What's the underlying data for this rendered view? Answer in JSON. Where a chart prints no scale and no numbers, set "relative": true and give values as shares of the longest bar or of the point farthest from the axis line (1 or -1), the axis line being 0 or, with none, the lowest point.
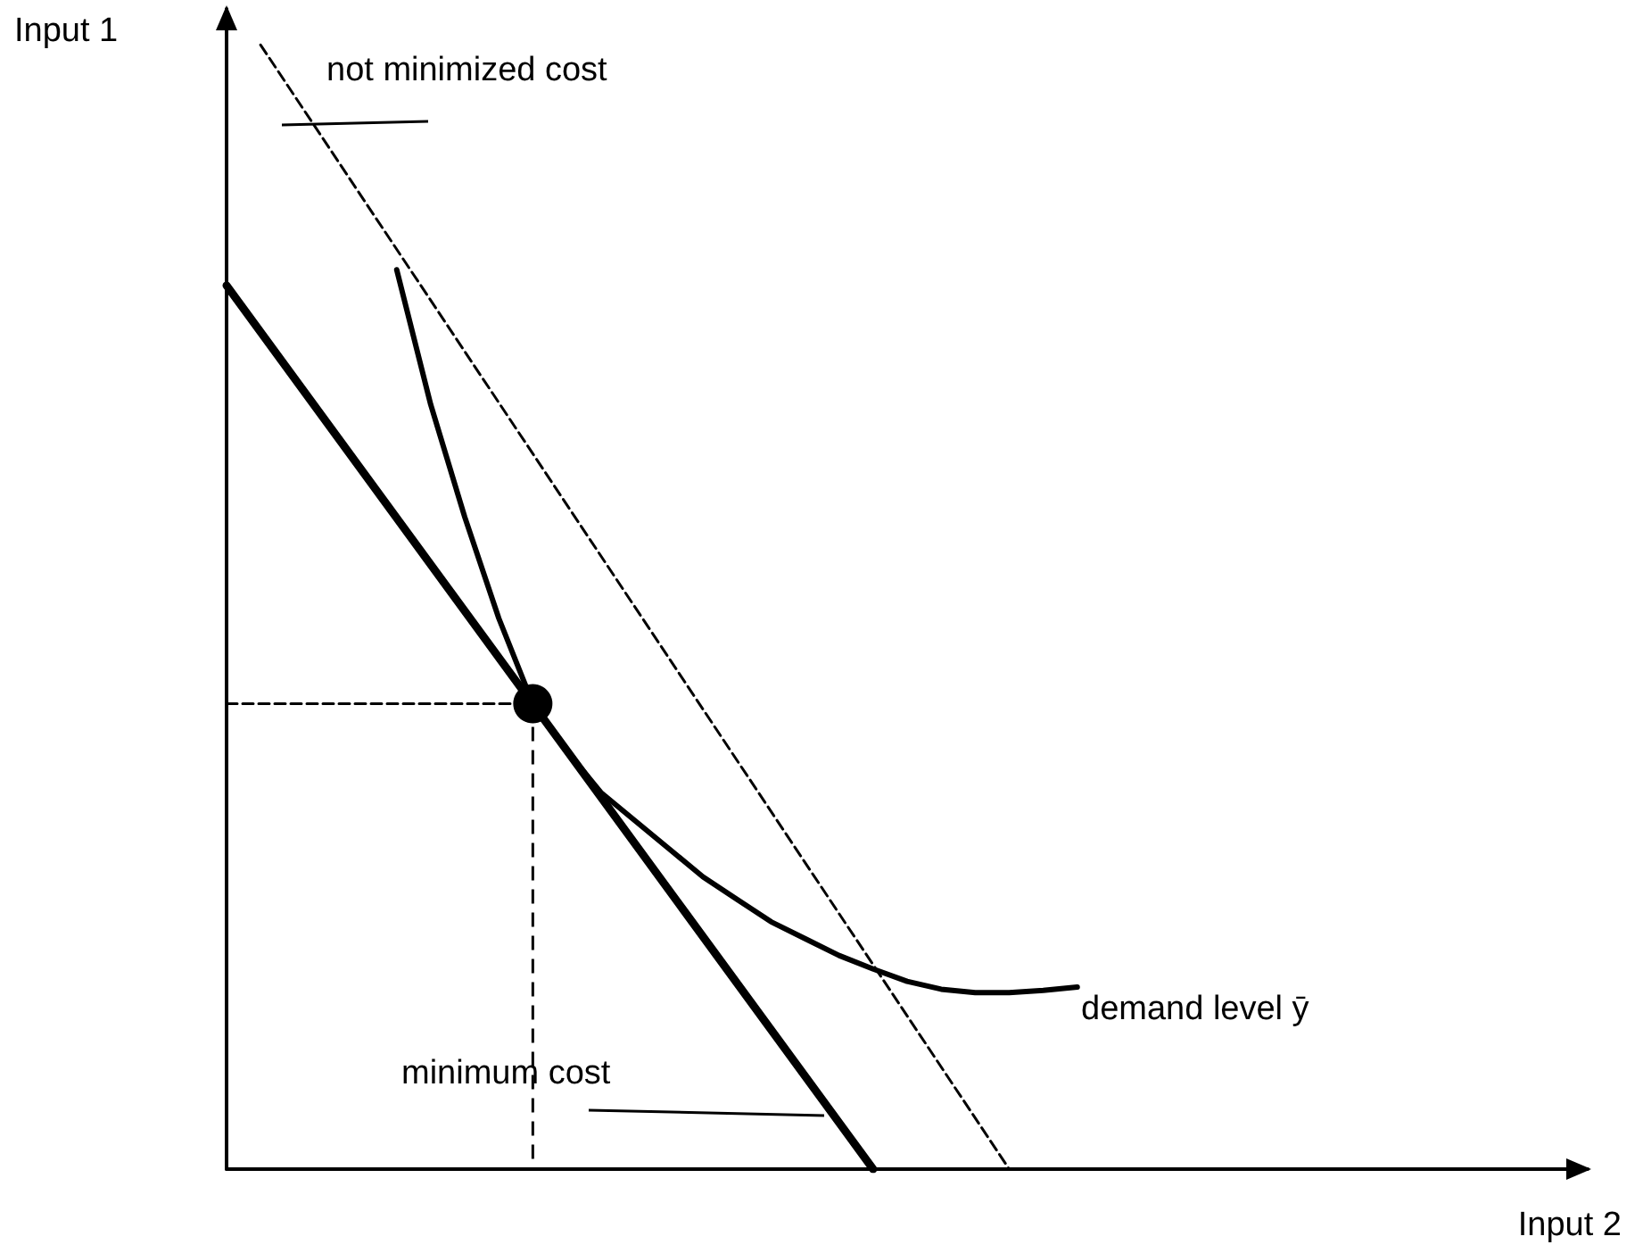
{
  "chart_data": {
    "type": "line",
    "relative": true,
    "xlabel": "Input 2",
    "ylabel": "Input 1",
    "grid": false,
    "marker": "none",
    "categories": [
      null,
      null,
      null,
      null,
      null,
      null,
      null,
      null,
      null,
      null,
      null,
      null,
      null,
      null,
      null,
      null,
      null,
      null,
      null,
      null,
      null,
      null,
      null,
      null,
      null,
      null,
      null,
      null,
      null,
      null,
      null,
      null,
      null,
      null,
      null,
      null,
      null,
      null,
      null,
      null,
      null
    ],
    "series": [
      {
        "color": "#000000",
        "line_style": "solid",
        "values": [
          0.786,
          null,
          null,
          null,
          null,
          null,
          null,
          null,
          null,
          null,
          null,
          null,
          null,
          null,
          null,
          null,
          null,
          null,
          null,
          0,
          null,
          null,
          null,
          null,
          null,
          null,
          null,
          null,
          null,
          null,
          null,
          null,
          null,
          null,
          null,
          null,
          null,
          null,
          null,
          null,
          null
        ]
      },
      {
        "color": "#000000",
        "line_style": "dashed",
        "values": [
          null,
          1,
          null,
          null,
          null,
          null,
          null,
          null,
          null,
          null,
          null,
          null,
          null,
          null,
          null,
          null,
          null,
          null,
          null,
          null,
          null,
          null,
          null,
          0,
          null,
          null,
          null,
          null,
          null,
          null,
          null,
          null,
          null,
          null,
          null,
          null,
          null,
          null,
          null,
          null,
          null
        ]
      },
      {
        "color": "#000000",
        "line_style": "solid",
        "values": [
          null,
          null,
          null,
          null,
          null,
          0.8,
          0.68,
          0.58,
          0.49,
          0.414,
          0.372,
          0.335,
          0.31,
          0.285,
          0.26,
          0.24,
          0.22,
          0.205,
          0.19,
          0.178,
          0.167,
          0.16,
          0.157,
          0.157,
          0.159,
          0.162,
          null,
          null,
          null,
          null,
          null,
          null,
          null,
          null,
          null,
          null,
          null,
          null,
          null,
          null,
          null
        ]
      },
      {
        "color": "#000000",
        "line_style": "dashed",
        "values": [
          0.414,
          null,
          null,
          null,
          null,
          null,
          null,
          null,
          null,
          0.414,
          null,
          null,
          null,
          null,
          null,
          null,
          null,
          null,
          null,
          null,
          null,
          null,
          null,
          null,
          null,
          null,
          null,
          null,
          null,
          null,
          null,
          null,
          null,
          null,
          null,
          null,
          null,
          null,
          null,
          null,
          null
        ]
      },
      {
        "color": "#000000",
        "marker": "circle",
        "values": [
          null,
          null,
          null,
          null,
          null,
          null,
          null,
          null,
          null,
          0.414,
          null,
          null,
          null,
          null,
          null,
          null,
          null,
          null,
          null,
          null,
          null,
          null,
          null,
          null,
          null,
          null,
          null,
          null,
          null,
          null,
          null,
          null,
          null,
          null,
          null,
          null,
          null,
          null,
          null,
          null,
          null
        ]
      }
    ],
    "annotations": [
      "not minimized cost",
      "minimum cost",
      "demand level ȳ"
    ]
  }
}
